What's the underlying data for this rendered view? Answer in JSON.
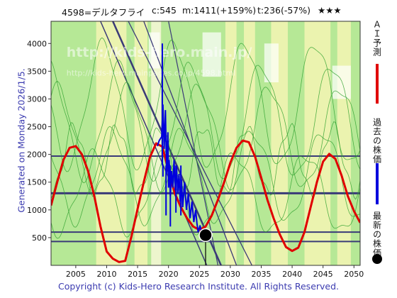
{
  "header": {
    "ticker": "4598=デルタフライ",
    "c_value": "c:545",
    "m_value": "m:1411(+159%)",
    "t_value": "t:236(-57%)",
    "stars": "★★★"
  },
  "side_label": "Generated on Monday 2026/1/5.",
  "legend": {
    "ai_forecast": "ＡＩ予測",
    "past_price": "過去の株価",
    "latest_price": "最新の株価",
    "colors": {
      "ai_forecast": "#e00000",
      "past_price": "#0000dd",
      "latest_price": "#000000"
    }
  },
  "watermarks": [
    "http://kids-hero.main.jp/",
    "http://kids-hero.mainpages.co.jp/4598.html"
  ],
  "footer": "Copyright (c) Kids-Hero Research Institute. All Rights Reserved.",
  "chart_data": {
    "type": "line",
    "xlim": [
      2001,
      2051
    ],
    "ylim": [
      0,
      4400
    ],
    "x_ticks": [
      2005,
      2010,
      2015,
      2020,
      2025,
      2030,
      2035,
      2040,
      2045,
      2050
    ],
    "y_ticks": [
      500,
      1000,
      1500,
      2000,
      2500,
      3000,
      3500,
      4000
    ],
    "horizontal_lines": [
      1300,
      1970,
      600,
      430
    ],
    "latest_point": {
      "x": 2026.0,
      "y": 545
    },
    "series": [
      {
        "key": "ai_forecast",
        "color": "#e00000",
        "points": [
          [
            2001,
            1080
          ],
          [
            2002,
            1500
          ],
          [
            2003,
            1900
          ],
          [
            2004,
            2120
          ],
          [
            2005,
            2150
          ],
          [
            2006,
            2000
          ],
          [
            2007,
            1700
          ],
          [
            2008,
            1250
          ],
          [
            2009,
            700
          ],
          [
            2010,
            250
          ],
          [
            2011,
            120
          ],
          [
            2012,
            60
          ],
          [
            2013,
            80
          ],
          [
            2014,
            520
          ],
          [
            2015,
            1020
          ],
          [
            2016,
            1500
          ],
          [
            2017,
            1950
          ],
          [
            2018,
            2200
          ],
          [
            2019,
            2140
          ],
          [
            2020,
            1700
          ],
          [
            2021,
            1300
          ],
          [
            2022,
            1050
          ],
          [
            2023,
            850
          ],
          [
            2024,
            700
          ],
          [
            2025,
            640
          ],
          [
            2026,
            700
          ],
          [
            2027,
            900
          ],
          [
            2028,
            1180
          ],
          [
            2029,
            1500
          ],
          [
            2030,
            1850
          ],
          [
            2031,
            2120
          ],
          [
            2032,
            2250
          ],
          [
            2033,
            2220
          ],
          [
            2034,
            1960
          ],
          [
            2035,
            1580
          ],
          [
            2036,
            1180
          ],
          [
            2037,
            850
          ],
          [
            2038,
            560
          ],
          [
            2039,
            330
          ],
          [
            2040,
            260
          ],
          [
            2041,
            320
          ],
          [
            2042,
            600
          ],
          [
            2043,
            1050
          ],
          [
            2044,
            1500
          ],
          [
            2045,
            1870
          ],
          [
            2046,
            2010
          ],
          [
            2047,
            1920
          ],
          [
            2048,
            1620
          ],
          [
            2049,
            1250
          ],
          [
            2050,
            980
          ],
          [
            2051,
            770
          ]
        ]
      },
      {
        "key": "past_price",
        "color": "#0000dd",
        "points": [
          [
            2018.2,
            2150
          ],
          [
            2018.5,
            2250
          ],
          [
            2018.9,
            2320
          ],
          [
            2019.1,
            2900
          ],
          [
            2019.3,
            2100
          ],
          [
            2019.5,
            2800
          ],
          [
            2019.7,
            1650
          ],
          [
            2019.9,
            2400
          ],
          [
            2020.0,
            1400
          ],
          [
            2020.1,
            1900
          ],
          [
            2020.3,
            1250
          ],
          [
            2020.5,
            1700
          ],
          [
            2020.7,
            1400
          ],
          [
            2020.9,
            1900
          ],
          [
            2021.1,
            1350
          ],
          [
            2021.3,
            1800
          ],
          [
            2021.5,
            1300
          ],
          [
            2021.7,
            1650
          ],
          [
            2021.9,
            1150
          ],
          [
            2022.1,
            1550
          ],
          [
            2022.3,
            1050
          ],
          [
            2022.6,
            1500
          ],
          [
            2022.9,
            1000
          ],
          [
            2023.2,
            1300
          ],
          [
            2023.5,
            850
          ],
          [
            2023.8,
            1150
          ],
          [
            2024.1,
            780
          ],
          [
            2024.4,
            1000
          ],
          [
            2024.6,
            760
          ],
          [
            2024.8,
            600
          ],
          [
            2025.1,
            720
          ],
          [
            2025.4,
            560
          ],
          [
            2025.7,
            600
          ],
          [
            2026.0,
            545
          ]
        ],
        "spikes": [
          [
            2019.0,
            4000
          ],
          [
            2019.1,
            1600
          ],
          [
            2019.6,
            900
          ],
          [
            2020.3,
            700
          ],
          [
            2021.2,
            950
          ],
          [
            2022.0,
            900
          ]
        ]
      }
    ]
  }
}
